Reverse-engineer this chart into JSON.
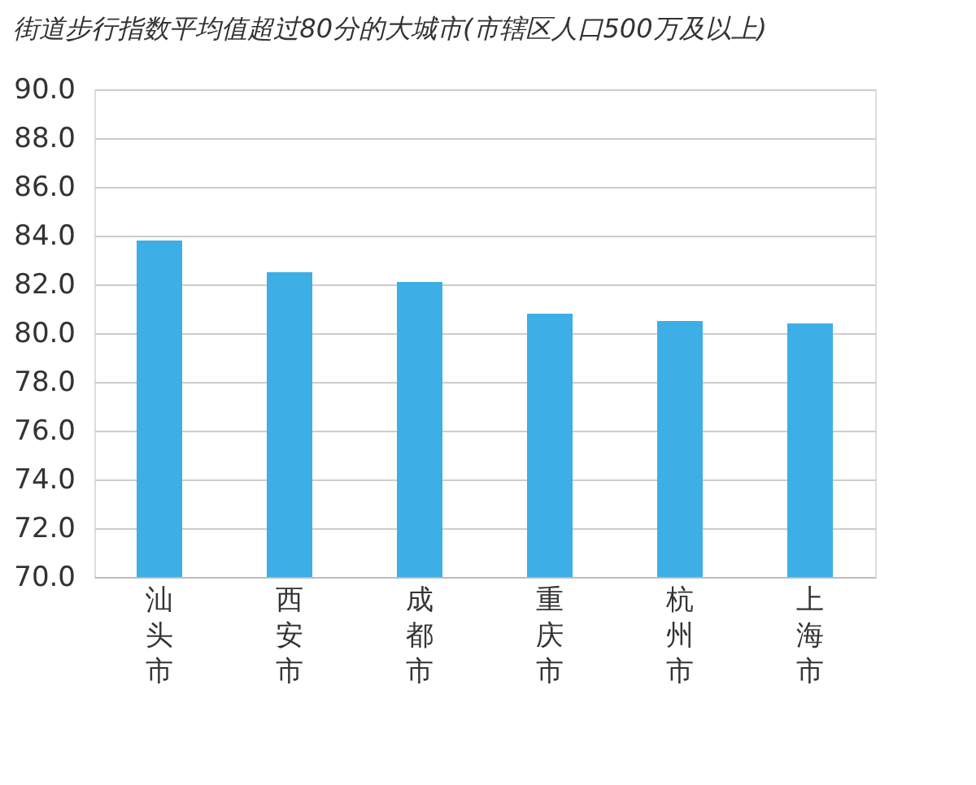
{
  "chart_data": {
    "type": "bar",
    "title": "街道步行指数平均值超过80分的大城市(市辖区人口500万及以上)",
    "categories": [
      "汕头市",
      "西安市",
      "成都市",
      "重庆市",
      "杭州市",
      "上海市"
    ],
    "values": [
      83.8,
      82.5,
      82.1,
      80.8,
      80.5,
      80.4
    ],
    "color": "#3daee6",
    "ylim": [
      70,
      90
    ],
    "yticks": [
      {
        "value": 70,
        "label": "70.0"
      },
      {
        "value": 72,
        "label": "72.0"
      },
      {
        "value": 74,
        "label": "74.0"
      },
      {
        "value": 76,
        "label": "76.0"
      },
      {
        "value": 78,
        "label": "78.0"
      },
      {
        "value": 80,
        "label": "80.0"
      },
      {
        "value": 82,
        "label": "82.0"
      },
      {
        "value": 84,
        "label": "84.0"
      },
      {
        "value": 86,
        "label": "86.0"
      },
      {
        "value": 88,
        "label": "88.0"
      },
      {
        "value": 90,
        "label": "90.0"
      }
    ],
    "grid": "y"
  }
}
